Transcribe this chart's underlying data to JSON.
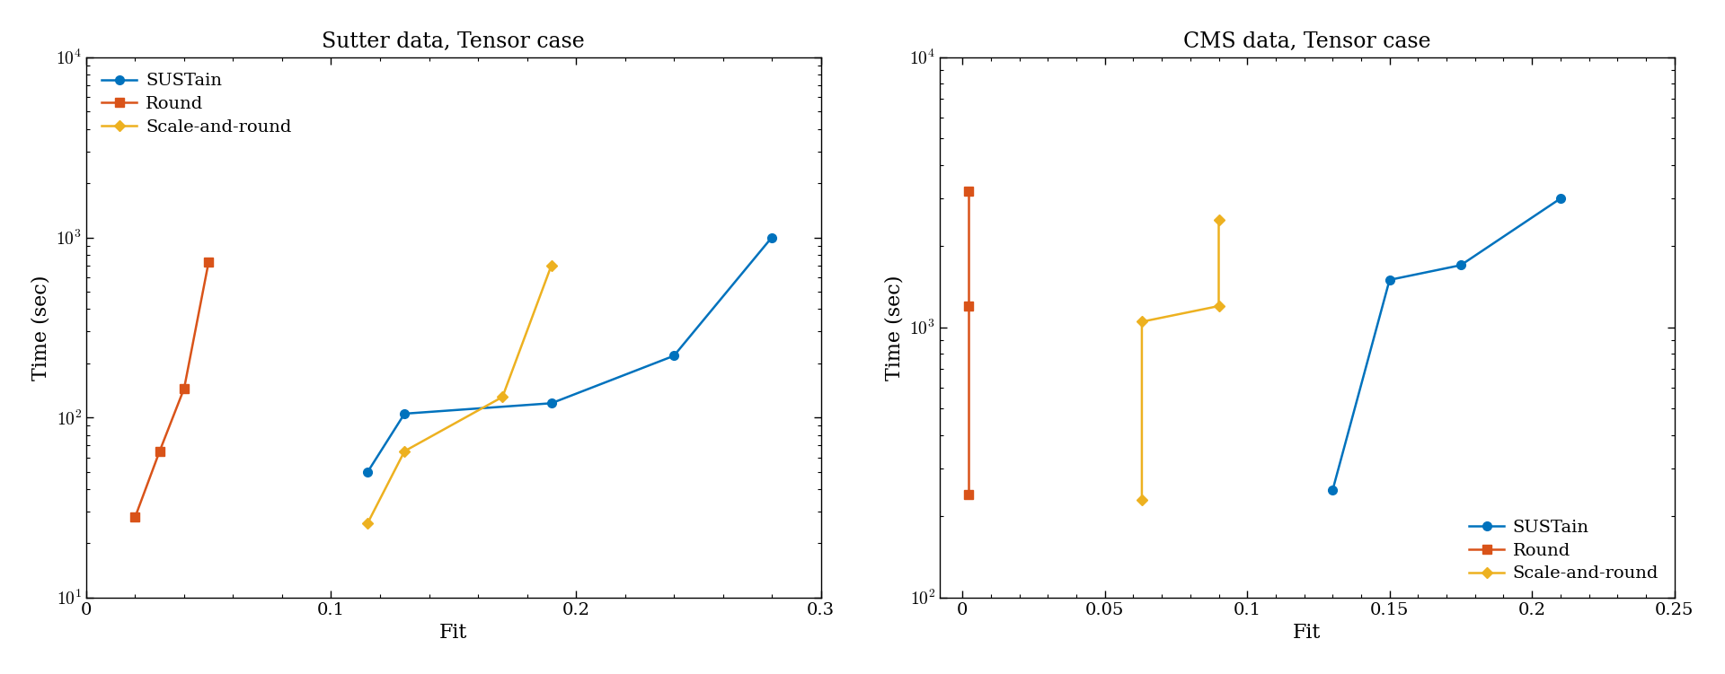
{
  "plot1": {
    "title": "Sutter data, Tensor case",
    "xlabel": "Fit",
    "ylabel": "Time (sec)",
    "xlim": [
      0,
      0.3
    ],
    "ylim": [
      10,
      10000
    ],
    "xticks": [
      0,
      0.1,
      0.2,
      0.3
    ],
    "series": [
      {
        "label": "SUSTain",
        "color": "#0072bd",
        "marker": "o",
        "markersize": 7,
        "x": [
          0.115,
          0.13,
          0.19,
          0.24,
          0.28
        ],
        "y": [
          50,
          105,
          120,
          220,
          1000
        ]
      },
      {
        "label": "Round",
        "color": "#d95319",
        "marker": "s",
        "markersize": 7,
        "x": [
          0.02,
          0.03,
          0.04,
          0.05
        ],
        "y": [
          28,
          65,
          145,
          730
        ]
      },
      {
        "label": "Scale-and-round",
        "color": "#edb120",
        "marker": "D",
        "markersize": 6,
        "x": [
          0.115,
          0.13,
          0.17,
          0.19
        ],
        "y": [
          26,
          65,
          130,
          700
        ]
      }
    ]
  },
  "plot2": {
    "title": "CMS data, Tensor case",
    "xlabel": "Fit",
    "ylabel": "Time (sec)",
    "xlim": [
      -0.008,
      0.25
    ],
    "ylim": [
      100,
      10000
    ],
    "xticks": [
      0,
      0.05,
      0.1,
      0.15,
      0.2,
      0.25
    ],
    "series": [
      {
        "label": "SUSTain",
        "color": "#0072bd",
        "marker": "o",
        "markersize": 7,
        "x": [
          0.13,
          0.15,
          0.175,
          0.21
        ],
        "y": [
          250,
          1500,
          1700,
          3000
        ]
      },
      {
        "label": "Round",
        "color": "#d95319",
        "marker": "s",
        "markersize": 7,
        "x": [
          0.002,
          0.002,
          0.002
        ],
        "y": [
          240,
          1200,
          3200
        ]
      },
      {
        "label": "Scale-and-round",
        "color": "#edb120",
        "marker": "D",
        "markersize": 6,
        "x": [
          0.063,
          0.063,
          0.09,
          0.09
        ],
        "y": [
          230,
          1050,
          1200,
          2500
        ]
      }
    ]
  },
  "figure": {
    "bg_color": "#ffffff",
    "title_fontsize": 17,
    "label_fontsize": 16,
    "legend_fontsize": 14,
    "tick_fontsize": 14,
    "linewidth": 1.8,
    "markersize": 7
  }
}
